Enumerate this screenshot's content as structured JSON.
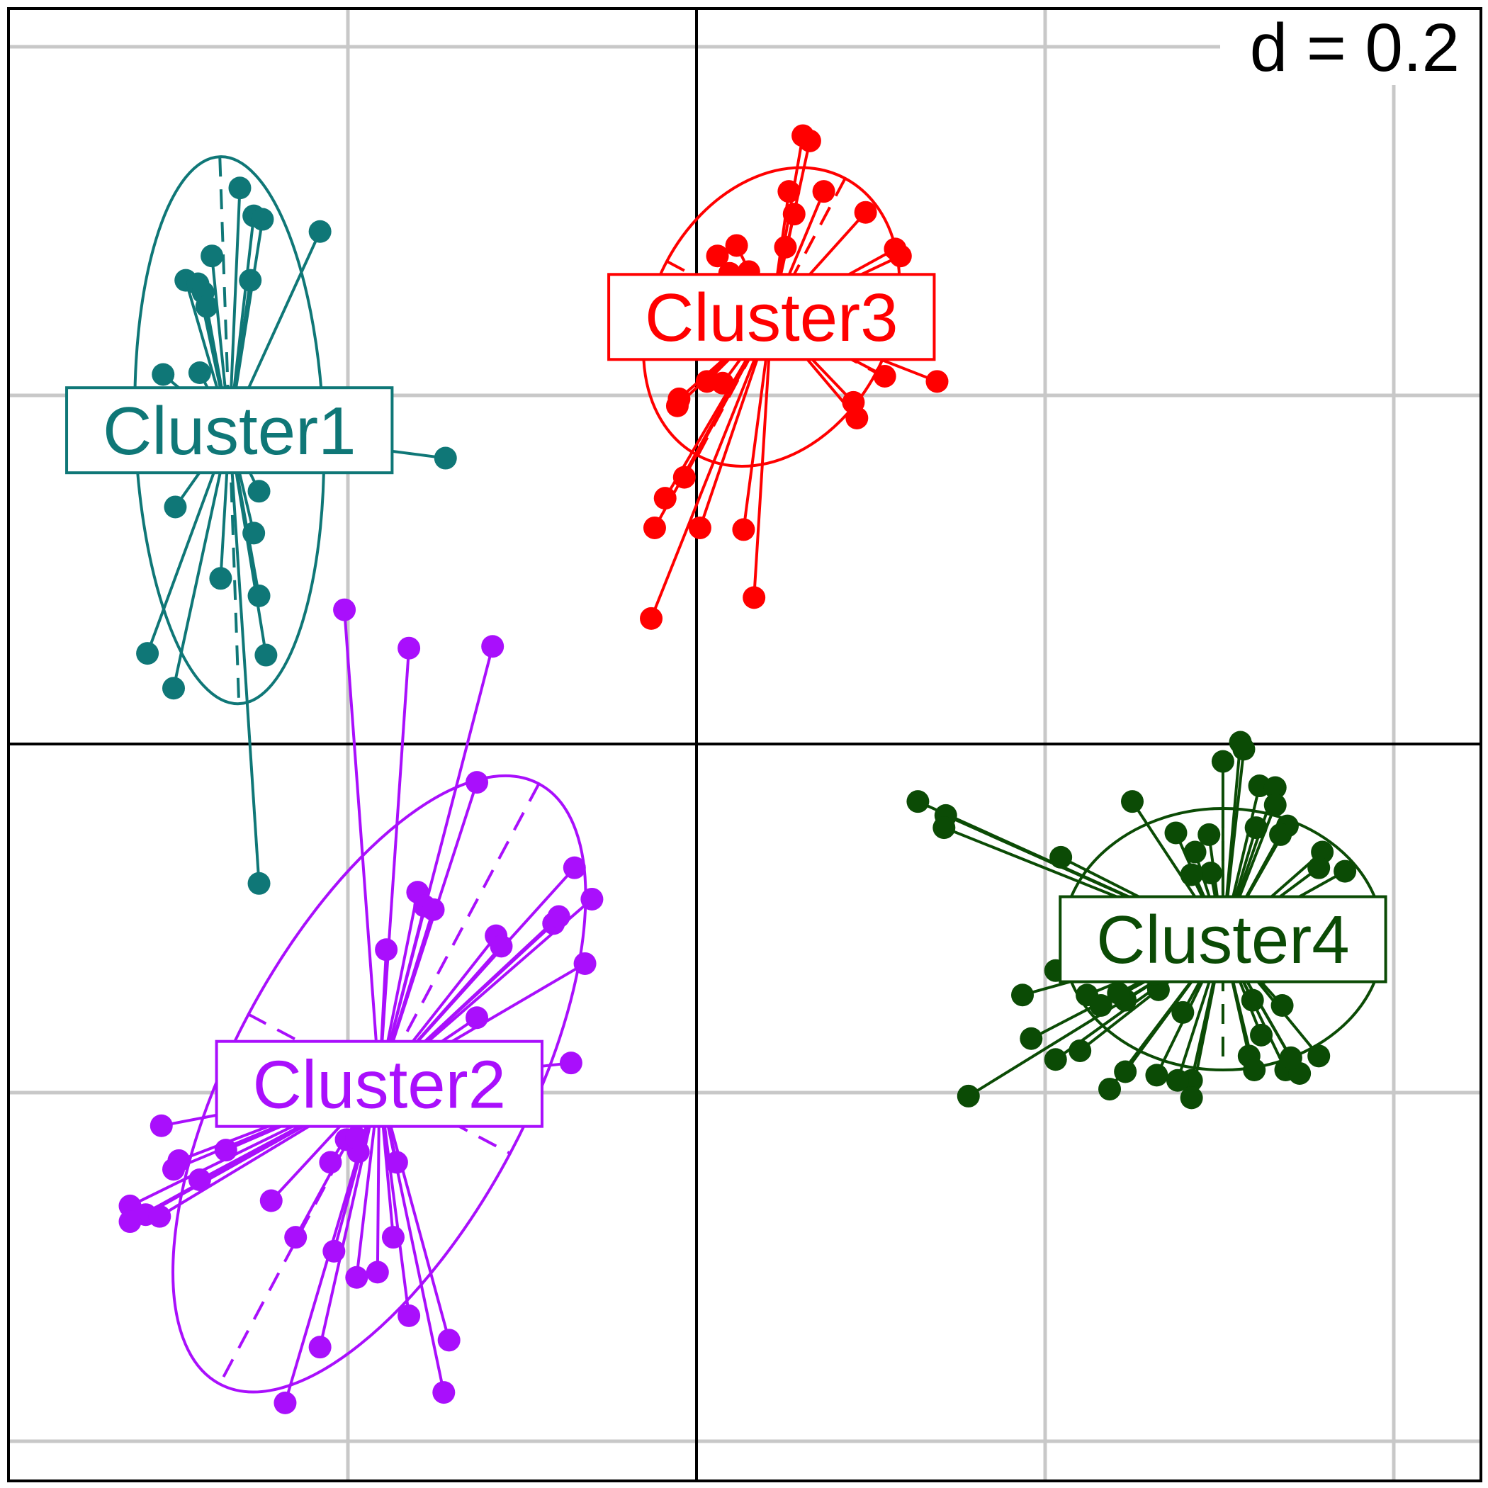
{
  "chart_data": {
    "type": "scatter",
    "scale_label": "d = 0.2",
    "grid_step": 0.2,
    "xlim": [
      -0.39,
      0.45
    ],
    "ylim": [
      -0.42,
      0.42
    ],
    "grid": true,
    "origin_axes": true,
    "series": [
      {
        "name": "Cluster1",
        "color": "#0f7777",
        "center": [
          -0.268,
          0.18
        ],
        "ellipse": {
          "rx": 0.054,
          "ry": 0.157,
          "angle": -2
        },
        "points": [
          [
            -0.262,
            0.319
          ],
          [
            -0.254,
            0.303
          ],
          [
            -0.249,
            0.301
          ],
          [
            -0.216,
            0.294
          ],
          [
            -0.278,
            0.28
          ],
          [
            -0.293,
            0.266
          ],
          [
            -0.286,
            0.264
          ],
          [
            -0.256,
            0.266
          ],
          [
            -0.283,
            0.259
          ],
          [
            -0.281,
            0.251
          ],
          [
            -0.306,
            0.212
          ],
          [
            -0.285,
            0.213
          ],
          [
            -0.144,
            0.164
          ],
          [
            -0.251,
            0.145
          ],
          [
            -0.299,
            0.136
          ],
          [
            -0.254,
            0.121
          ],
          [
            -0.273,
            0.095
          ],
          [
            -0.251,
            0.085
          ],
          [
            -0.315,
            0.052
          ],
          [
            -0.247,
            0.051
          ],
          [
            -0.3,
            0.032
          ],
          [
            -0.251,
            -0.08
          ]
        ]
      },
      {
        "name": "Cluster2",
        "color": "#a90ffc",
        "center": [
          -0.182,
          -0.195
        ],
        "ellipse": {
          "rx": 0.085,
          "ry": 0.195,
          "angle": 28
        },
        "points": [
          [
            -0.202,
            0.077
          ],
          [
            -0.165,
            0.055
          ],
          [
            -0.117,
            0.056
          ],
          [
            -0.126,
            -0.022
          ],
          [
            -0.16,
            -0.085
          ],
          [
            -0.156,
            -0.093
          ],
          [
            -0.151,
            -0.095
          ],
          [
            -0.115,
            -0.11
          ],
          [
            -0.112,
            -0.116
          ],
          [
            -0.178,
            -0.118
          ],
          [
            -0.07,
            -0.071
          ],
          [
            -0.082,
            -0.103
          ],
          [
            -0.079,
            -0.099
          ],
          [
            -0.06,
            -0.089
          ],
          [
            -0.064,
            -0.126
          ],
          [
            -0.126,
            -0.157
          ],
          [
            -0.072,
            -0.183
          ],
          [
            -0.161,
            -0.196
          ],
          [
            -0.307,
            -0.219
          ],
          [
            -0.27,
            -0.233
          ],
          [
            -0.297,
            -0.239
          ],
          [
            -0.3,
            -0.244
          ],
          [
            -0.285,
            -0.25
          ],
          [
            -0.325,
            -0.265
          ],
          [
            -0.316,
            -0.27
          ],
          [
            -0.308,
            -0.271
          ],
          [
            -0.325,
            -0.274
          ],
          [
            -0.244,
            -0.262
          ],
          [
            -0.201,
            -0.227
          ],
          [
            -0.194,
            -0.234
          ],
          [
            -0.195,
            -0.226
          ],
          [
            -0.21,
            -0.24
          ],
          [
            -0.172,
            -0.24
          ],
          [
            -0.23,
            -0.283
          ],
          [
            -0.174,
            -0.283
          ],
          [
            -0.208,
            -0.291
          ],
          [
            -0.183,
            -0.303
          ],
          [
            -0.165,
            -0.328
          ],
          [
            -0.195,
            -0.306
          ],
          [
            -0.142,
            -0.342
          ],
          [
            -0.216,
            -0.346
          ],
          [
            -0.236,
            -0.378
          ],
          [
            -0.145,
            -0.372
          ]
        ]
      },
      {
        "name": "Cluster3",
        "color": "#ff0000",
        "center": [
          0.043,
          0.245
        ],
        "ellipse": {
          "rx": 0.068,
          "ry": 0.09,
          "angle": 28
        },
        "points": [
          [
            0.061,
            0.349
          ],
          [
            0.073,
            0.317
          ],
          [
            0.065,
            0.346
          ],
          [
            0.053,
            0.317
          ],
          [
            0.056,
            0.304
          ],
          [
            0.097,
            0.305
          ],
          [
            0.051,
            0.285
          ],
          [
            0.012,
            0.28
          ],
          [
            0.023,
            0.286
          ],
          [
            0.019,
            0.27
          ],
          [
            0.03,
            0.271
          ],
          [
            0.035,
            0.262
          ],
          [
            0.114,
            0.284
          ],
          [
            0.117,
            0.28
          ],
          [
            0.111,
            0.258
          ],
          [
            0.096,
            0.25
          ],
          [
            0.108,
            0.211
          ],
          [
            0.006,
            0.208
          ],
          [
            -0.011,
            0.194
          ],
          [
            0.015,
            0.207
          ],
          [
            0.09,
            0.196
          ],
          [
            -0.007,
            0.153
          ],
          [
            0.138,
            0.208
          ],
          [
            0.092,
            0.187
          ],
          [
            -0.01,
            0.198
          ],
          [
            -0.018,
            0.141
          ],
          [
            0.002,
            0.124
          ],
          [
            0.027,
            0.123
          ],
          [
            -0.024,
            0.124
          ],
          [
            -0.026,
            0.072
          ],
          [
            0.033,
            0.084
          ]
        ]
      },
      {
        "name": "Cluster4",
        "color": "#0b4b05",
        "center": [
          0.302,
          -0.112
        ],
        "ellipse": {
          "rx": 0.092,
          "ry": 0.075,
          "angle": 0
        },
        "points": [
          [
            0.312,
            0.001
          ],
          [
            0.314,
            -0.003
          ],
          [
            0.302,
            -0.01
          ],
          [
            0.323,
            -0.024
          ],
          [
            0.332,
            -0.025
          ],
          [
            0.25,
            -0.033
          ],
          [
            0.332,
            -0.035
          ],
          [
            0.127,
            -0.033
          ],
          [
            0.143,
            -0.041
          ],
          [
            0.275,
            -0.051
          ],
          [
            0.321,
            -0.048
          ],
          [
            0.339,
            -0.047
          ],
          [
            0.294,
            -0.052
          ],
          [
            0.335,
            -0.052
          ],
          [
            0.286,
            -0.062
          ],
          [
            0.359,
            -0.062
          ],
          [
            0.209,
            -0.065
          ],
          [
            0.142,
            -0.048
          ],
          [
            0.357,
            -0.071
          ],
          [
            0.372,
            -0.073
          ],
          [
            0.295,
            -0.074
          ],
          [
            0.284,
            -0.075
          ],
          [
            0.329,
            -0.123
          ],
          [
            0.374,
            -0.129
          ],
          [
            0.356,
            -0.13
          ],
          [
            0.299,
            -0.126
          ],
          [
            0.325,
            -0.131
          ],
          [
            0.224,
            -0.144
          ],
          [
            0.206,
            -0.13
          ],
          [
            0.246,
            -0.147
          ],
          [
            0.319,
            -0.147
          ],
          [
            0.336,
            -0.15
          ],
          [
            0.187,
            -0.144
          ],
          [
            0.265,
            -0.141
          ],
          [
            0.232,
            -0.15
          ],
          [
            0.242,
            -0.143
          ],
          [
            0.262,
            -0.132
          ],
          [
            0.279,
            -0.154
          ],
          [
            0.273,
            -0.13
          ],
          [
            0.192,
            -0.169
          ],
          [
            0.324,
            -0.167
          ],
          [
            0.22,
            -0.176
          ],
          [
            0.246,
            -0.188
          ],
          [
            0.237,
            -0.198
          ],
          [
            0.156,
            -0.202
          ],
          [
            0.206,
            -0.181
          ],
          [
            0.264,
            -0.19
          ],
          [
            0.284,
            -0.193
          ],
          [
            0.284,
            -0.203
          ],
          [
            0.276,
            -0.193
          ],
          [
            0.317,
            -0.179
          ],
          [
            0.32,
            -0.187
          ],
          [
            0.338,
            -0.187
          ],
          [
            0.346,
            -0.189
          ],
          [
            0.341,
            -0.18
          ],
          [
            0.357,
            -0.179
          ]
        ]
      }
    ]
  }
}
